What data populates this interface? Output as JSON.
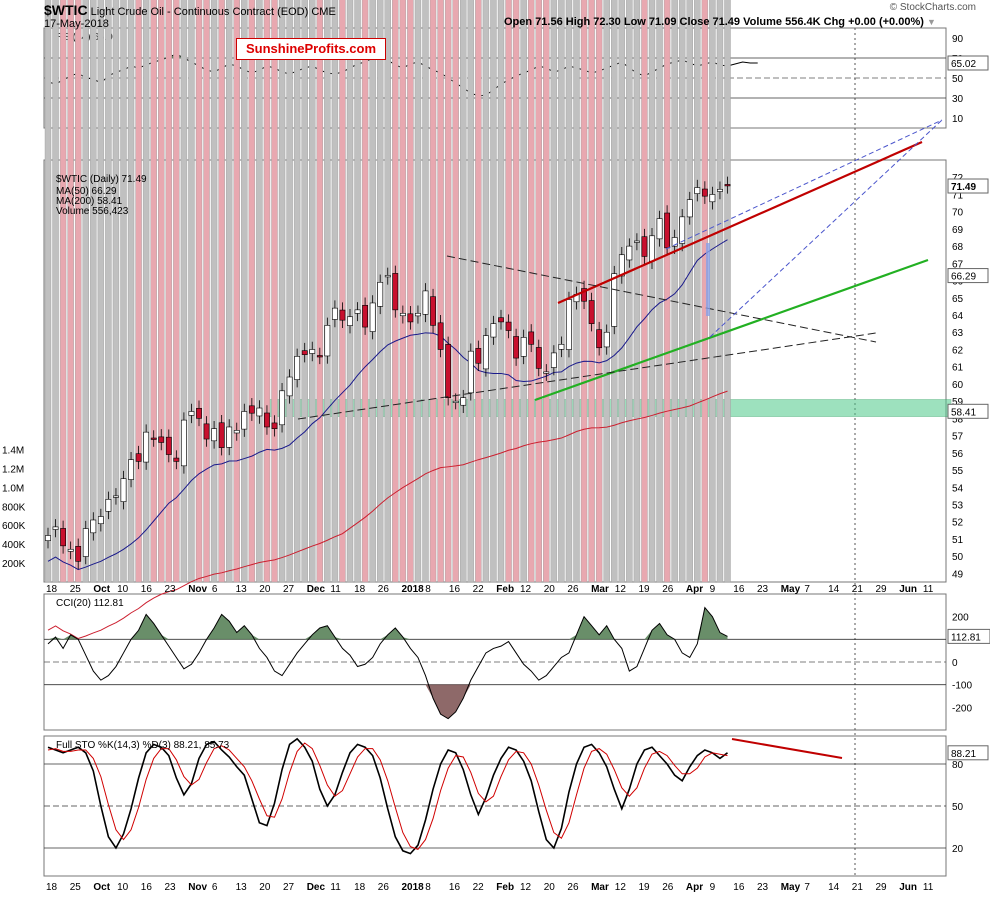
{
  "header": {
    "symbol": "$WTIC",
    "name": "Light Crude Oil - Continuous Contract (EOD)",
    "exchange": "CME",
    "date": "17-May-2018",
    "open": "Open 71.56",
    "high": "High 72.30",
    "low": "Low 71.09",
    "close": "Close 71.49",
    "volume": "Volume 556.4K",
    "chg": "Chg +0.00 (+0.00%)",
    "chg_arrow": "▼",
    "copyright": "© StockCharts.com",
    "watermark": "SunshineProfits.com"
  },
  "chart_data": [
    {
      "type": "line",
      "panel": "rsi",
      "label": "RSI(14) 65.02",
      "value_label": "65.02",
      "ylim": [
        0,
        100
      ],
      "yticks": [
        90,
        70,
        50,
        30,
        10
      ],
      "levels": [
        70,
        30
      ],
      "values": [
        46,
        44,
        48,
        52,
        55,
        50,
        49,
        45,
        52,
        56,
        58,
        62,
        60,
        63,
        66,
        68,
        71,
        74,
        70,
        66,
        62,
        58,
        56,
        60,
        64,
        62,
        58,
        55,
        58,
        62,
        60,
        56,
        54,
        57,
        60,
        62,
        58,
        55,
        54,
        56,
        60,
        64,
        66,
        70,
        72,
        68,
        63,
        60,
        64,
        66,
        62,
        58,
        55,
        50,
        45,
        40,
        35,
        32,
        33,
        38,
        44,
        48,
        52,
        55,
        58,
        62,
        60,
        56,
        58,
        62,
        60,
        58,
        55,
        57,
        60,
        63,
        66,
        60,
        55,
        52,
        56,
        60,
        64,
        66,
        68,
        65,
        62,
        64,
        66,
        63,
        62,
        64,
        66,
        65,
        65
      ]
    },
    {
      "type": "candlestick",
      "panel": "price",
      "label": "$WTIC (Daily) 71.49",
      "legend": [
        "MA(50) 66.29",
        "MA(200) 58.41",
        "Volume 556,423"
      ],
      "series_colors": {
        "ma50": "#1a1a8c",
        "ma200": "#cc1f2f",
        "up": "#ffffff",
        "down": "#c8102e"
      },
      "ylim": [
        48.5,
        73
      ],
      "yticks": [
        72,
        71,
        70,
        69,
        68,
        67,
        66,
        65,
        64,
        63,
        62,
        61,
        60,
        59,
        58,
        57,
        56,
        55,
        54,
        53,
        52,
        51,
        50,
        49
      ],
      "price_labels": [
        {
          "text": "71.49",
          "value": 71.49
        },
        {
          "text": "66.29",
          "value": 66.29
        },
        {
          "text": "58.41",
          "value": 58.41
        }
      ],
      "x_ticks": [
        "18",
        "25",
        "Oct",
        "10",
        "16",
        "23",
        "Nov",
        "6",
        "13",
        "20",
        "27",
        "Dec",
        "11",
        "18",
        "26",
        "2018",
        "8",
        "16",
        "22",
        "Feb",
        "12",
        "20",
        "26",
        "Mar",
        "12",
        "19",
        "26",
        "Apr",
        "9",
        "16",
        "23",
        "May",
        "7",
        "14",
        "21",
        "29",
        "Jun",
        "11"
      ],
      "closes": [
        51.2,
        51.7,
        50.6,
        50.4,
        49.7,
        51.6,
        52.1,
        52.3,
        53.3,
        53.5,
        54.5,
        55.6,
        55.5,
        57.2,
        56.8,
        56.6,
        55.9,
        55.5,
        57.9,
        58.4,
        58.0,
        56.8,
        57.4,
        56.3,
        57.5,
        57.3,
        58.4,
        58.3,
        58.6,
        57.5,
        57.4,
        59.6,
        60.4,
        61.6,
        61.7,
        62.0,
        61.6,
        63.4,
        64.4,
        63.7,
        63.9,
        64.3,
        63.3,
        64.7,
        65.9,
        66.3,
        64.3,
        64.1,
        63.6,
        64.1,
        65.4,
        63.4,
        62.0,
        59.2,
        59.0,
        59.2,
        61.9,
        61.2,
        62.8,
        63.5,
        63.6,
        63.1,
        61.5,
        62.7,
        62.3,
        60.9,
        60.7,
        61.8,
        62.3,
        64.9,
        65.2,
        64.8,
        63.5,
        62.1,
        63.0,
        66.4,
        67.5,
        68.0,
        68.3,
        67.4,
        68.6,
        69.6,
        67.9,
        68.5,
        69.7,
        70.7,
        71.4,
        70.9,
        71.0,
        71.3,
        71.5
      ]
    },
    {
      "type": "bar",
      "panel": "volume",
      "yticks": [
        "1.4M",
        "1.2M",
        "1.0M",
        "800K",
        "600K",
        "400K",
        "200K"
      ],
      "value_label": "556423",
      "values": [
        420,
        500,
        460,
        550,
        600,
        620,
        380,
        460,
        450,
        520,
        540,
        580,
        640,
        700,
        560,
        780,
        560,
        540,
        580,
        620,
        720,
        640,
        560,
        600,
        600,
        580,
        620,
        500,
        540,
        620,
        560,
        600,
        580,
        640,
        560,
        560,
        700,
        680,
        720,
        740,
        740,
        660,
        800,
        780,
        820,
        860,
        980,
        1000,
        980,
        940,
        900,
        860,
        820,
        780,
        740,
        700,
        620,
        600,
        580,
        560,
        620,
        600,
        560,
        580,
        600,
        640,
        620,
        660,
        700,
        780,
        720,
        660,
        700,
        640,
        600,
        600,
        580,
        780,
        900,
        720,
        820,
        720,
        760,
        700,
        800,
        740,
        720,
        1100,
        840,
        760,
        556
      ]
    },
    {
      "type": "line",
      "panel": "cci",
      "label": "CCI(20) 112.81",
      "value_label": "112.81",
      "ylim": [
        -300,
        300
      ],
      "yticks": [
        200,
        100,
        0,
        -100,
        -200
      ],
      "levels": [
        100,
        -100
      ],
      "values": [
        80,
        110,
        60,
        120,
        100,
        30,
        -40,
        -80,
        -60,
        -20,
        40,
        100,
        140,
        210,
        170,
        120,
        70,
        20,
        -30,
        -10,
        40,
        100,
        150,
        210,
        180,
        130,
        160,
        120,
        60,
        20,
        -40,
        -60,
        -10,
        40,
        80,
        120,
        150,
        160,
        110,
        60,
        30,
        -20,
        -10,
        20,
        80,
        120,
        150,
        110,
        60,
        20,
        -60,
        -160,
        -230,
        -250,
        -220,
        -160,
        -80,
        -20,
        40,
        60,
        70,
        90,
        40,
        -10,
        -40,
        -80,
        -60,
        -20,
        20,
        40,
        120,
        200,
        160,
        120,
        160,
        100,
        60,
        -40,
        -20,
        60,
        140,
        170,
        120,
        100,
        40,
        20,
        80,
        240,
        200,
        130,
        113
      ]
    },
    {
      "type": "line",
      "panel": "sto",
      "label": "Full STO %K(14,3) %D(3) 88.21, 85.73",
      "value_label": "88.21",
      "series": [
        {
          "name": "%K(14,3)",
          "values": [
            92,
            90,
            88,
            90,
            92,
            88,
            75,
            50,
            28,
            20,
            30,
            48,
            70,
            88,
            94,
            92,
            86,
            70,
            58,
            66,
            84,
            94,
            96,
            90,
            85,
            78,
            72,
            55,
            38,
            36,
            52,
            76,
            94,
            98,
            92,
            82,
            62,
            50,
            58,
            74,
            88,
            94,
            92,
            86,
            70,
            48,
            28,
            18,
            16,
            22,
            40,
            62,
            80,
            90,
            88,
            76,
            58,
            44,
            56,
            72,
            84,
            92,
            90,
            82,
            68,
            46,
            26,
            20,
            34,
            60,
            80,
            92,
            94,
            88,
            78,
            62,
            48,
            62,
            80,
            90,
            92,
            86,
            80,
            72,
            68,
            78,
            86,
            90,
            88,
            84,
            88
          ]
        },
        {
          "name": "%D(3)",
          "values": [
            90,
            91,
            89,
            89,
            90,
            90,
            84,
            71,
            51,
            33,
            26,
            33,
            49,
            69,
            84,
            91,
            91,
            83,
            71,
            65,
            69,
            81,
            91,
            93,
            90,
            84,
            78,
            68,
            55,
            43,
            42,
            55,
            74,
            89,
            95,
            91,
            79,
            65,
            57,
            61,
            73,
            85,
            91,
            91,
            83,
            68,
            49,
            31,
            21,
            19,
            26,
            41,
            61,
            77,
            86,
            85,
            74,
            59,
            53,
            57,
            71,
            83,
            89,
            88,
            80,
            65,
            47,
            31,
            27,
            38,
            58,
            77,
            89,
            91,
            87,
            76,
            63,
            57,
            63,
            77,
            87,
            89,
            86,
            79,
            73,
            73,
            77,
            85,
            88,
            87,
            86
          ]
        }
      ],
      "value_labels": [
        "88.21",
        "85.73"
      ],
      "ylim": [
        0,
        100
      ],
      "yticks": [
        80,
        50,
        20
      ],
      "levels": [
        80,
        50,
        20
      ]
    }
  ]
}
